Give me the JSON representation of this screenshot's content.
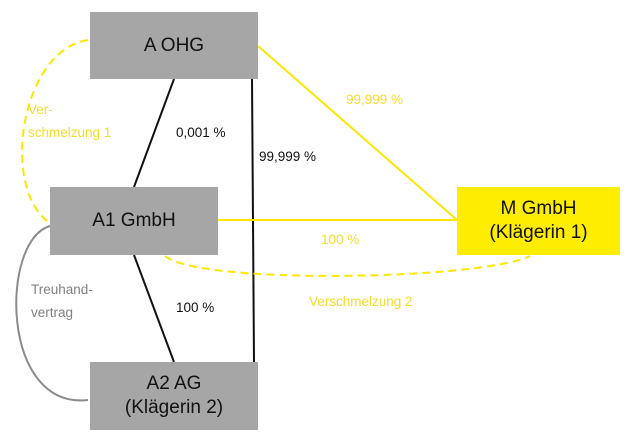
{
  "colors": {
    "entity_box": "#a6a6a6",
    "highlight_box": "#ffed00",
    "yellow_line": "#ffe600",
    "yellow_text": "#f5dc2a",
    "black_line": "#111111",
    "gray_line": "#8c8c8c"
  },
  "nodes": {
    "a_ohg": {
      "line1": "A OHG"
    },
    "a1_gmbh": {
      "line1": "A1 GmbH"
    },
    "a2_ag": {
      "line1": "A2 AG",
      "line2": "(Klägerin 2)"
    },
    "m_gmbh": {
      "line1": "M GmbH",
      "line2": "(Klägerin 1)"
    }
  },
  "edges": {
    "a_ohg_to_m": "99,999 %",
    "a_ohg_to_a1": "0,001 %",
    "a_ohg_to_a2": "99,999 %",
    "a1_to_m": "100 %",
    "a1_to_a2": "100 %",
    "merger1_line1": "Ver-",
    "merger1_line2": "schmelzung 1",
    "merger2": "Verschmelzung 2",
    "trust_line1": "Treuhand-",
    "trust_line2": "vertrag"
  }
}
